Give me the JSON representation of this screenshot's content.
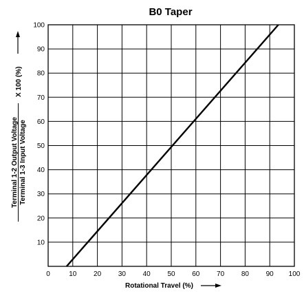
{
  "chart_data": {
    "type": "line",
    "title": "B0 Taper",
    "xlabel": "Rotational Travel (%)",
    "ylabel": {
      "numerator": "Terminal 1-2 Output Voltage",
      "denominator": "Terminal 1-3 Input Voltage",
      "multiplier": "X 100 (%)"
    },
    "xlim": [
      0,
      100
    ],
    "ylim": [
      0,
      100
    ],
    "x_ticks": [
      0,
      10,
      20,
      30,
      40,
      50,
      60,
      70,
      80,
      90,
      100
    ],
    "y_ticks": [
      10,
      20,
      30,
      40,
      50,
      60,
      70,
      80,
      90,
      100
    ],
    "grid": true,
    "series": [
      {
        "x": [
          7.5,
          93.5
        ],
        "y": [
          0,
          100
        ],
        "color": "#000000"
      }
    ]
  }
}
